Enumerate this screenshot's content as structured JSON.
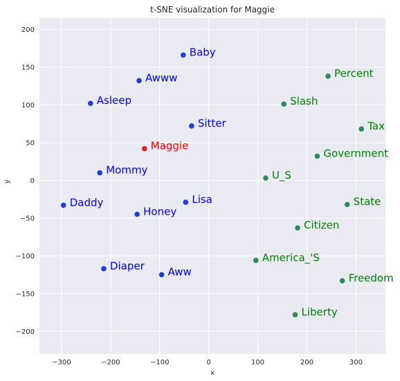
{
  "chart_data": {
    "type": "scatter",
    "title": "t-SNE visualization for Maggie",
    "xlabel": "x",
    "ylabel": "y",
    "xlim": [
      -345,
      360
    ],
    "ylim": [
      -230,
      215
    ],
    "xticks": [
      -300,
      -200,
      -100,
      0,
      100,
      200,
      300
    ],
    "yticks": [
      -200,
      -150,
      -100,
      -50,
      0,
      50,
      100,
      150,
      200
    ],
    "grid": true,
    "colors": {
      "background": "#eaeaf2",
      "grid": "#ffffff",
      "blue": "#0000ff",
      "blue_marker": "#1f3fd6",
      "green": "#008000",
      "green_marker": "#2e8b57",
      "red": "#ff0000",
      "red_marker": "#d62728"
    },
    "points": [
      {
        "label": "Baby",
        "x": -52,
        "y": 166,
        "group": "blue"
      },
      {
        "label": "Awww",
        "x": -142,
        "y": 132,
        "group": "blue"
      },
      {
        "label": "Asleep",
        "x": -241,
        "y": 102,
        "group": "blue"
      },
      {
        "label": "Sitter",
        "x": -35,
        "y": 72,
        "group": "blue"
      },
      {
        "label": "Maggie",
        "x": -131,
        "y": 42,
        "group": "red"
      },
      {
        "label": "Mommy",
        "x": -222,
        "y": 10,
        "group": "blue"
      },
      {
        "label": "Daddy",
        "x": -296,
        "y": -33,
        "group": "blue"
      },
      {
        "label": "Lisa",
        "x": -47,
        "y": -29,
        "group": "blue"
      },
      {
        "label": "Honey",
        "x": -146,
        "y": -45,
        "group": "blue"
      },
      {
        "label": "Diaper",
        "x": -214,
        "y": -117,
        "group": "blue"
      },
      {
        "label": "Aww",
        "x": -96,
        "y": -125,
        "group": "blue"
      },
      {
        "label": "Percent",
        "x": 243,
        "y": 138,
        "group": "green"
      },
      {
        "label": "Slash",
        "x": 153,
        "y": 101,
        "group": "green"
      },
      {
        "label": "Tax",
        "x": 311,
        "y": 68,
        "group": "green"
      },
      {
        "label": "Government",
        "x": 221,
        "y": 32,
        "group": "green"
      },
      {
        "label": "U_S",
        "x": 116,
        "y": 3,
        "group": "green"
      },
      {
        "label": "State",
        "x": 282,
        "y": -32,
        "group": "green"
      },
      {
        "label": "Citizen",
        "x": 181,
        "y": -63,
        "group": "green"
      },
      {
        "label": "America_'S",
        "x": 96,
        "y": -106,
        "group": "green"
      },
      {
        "label": "Freedom",
        "x": 272,
        "y": -133,
        "group": "green"
      },
      {
        "label": "Liberty",
        "x": 176,
        "y": -178,
        "group": "green"
      }
    ]
  }
}
